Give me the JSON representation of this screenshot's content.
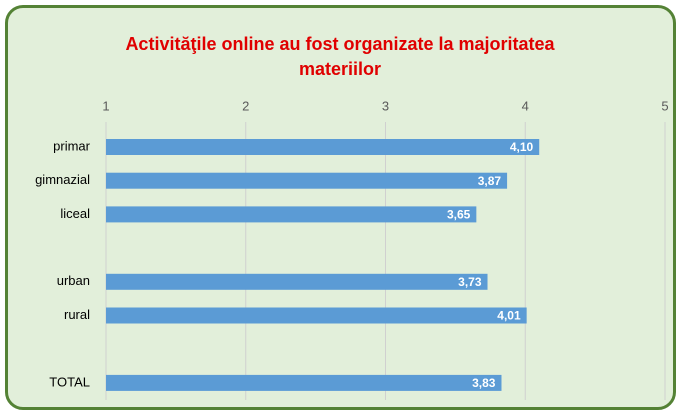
{
  "chart_data": {
    "type": "bar",
    "orientation": "horizontal",
    "title": "Activităţile online au fost organizate la majoritatea materiilor",
    "categories": [
      "primar",
      "gimnazial",
      "liceal",
      null,
      "urban",
      "rural",
      null,
      "TOTAL"
    ],
    "values": [
      4.1,
      3.87,
      3.65,
      null,
      3.73,
      4.01,
      null,
      3.83
    ],
    "value_labels": [
      "4,10",
      "3,87",
      "3,65",
      null,
      "3,73",
      "4,01",
      null,
      "3,83"
    ],
    "color": "#5b9bd5",
    "xlim": [
      1,
      5
    ],
    "xticks": [
      1,
      2,
      3,
      4,
      5
    ],
    "grid": true
  }
}
